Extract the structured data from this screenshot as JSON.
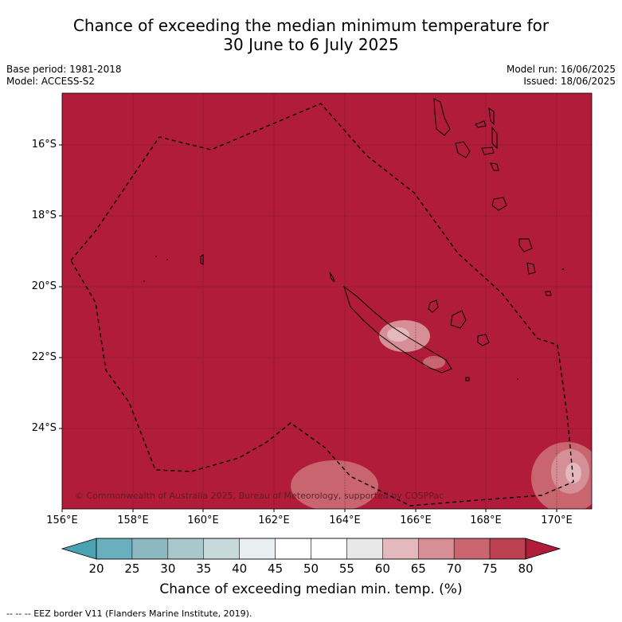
{
  "title": {
    "line1": "Chance of exceeding the median minimum temperature for",
    "line2": "30 June to 6 July 2025"
  },
  "meta": {
    "base_period": "Base period: 1981-2018",
    "model": "Model: ACCESS-S2",
    "model_run": "Model run: 16/06/2025",
    "issued": "Issued: 18/06/2025"
  },
  "map": {
    "lat_labels": [
      "16°S",
      "18°S",
      "20°S",
      "22°S",
      "24°S"
    ],
    "lon_labels": [
      "156°E",
      "158°E",
      "160°E",
      "162°E",
      "164°E",
      "166°E",
      "168°E",
      "170°E"
    ],
    "copyright": "© Commonwealth of Australia 2025, Bureau of Meteorology, supported by COSPPac",
    "background_color": "#b11c3a"
  },
  "colorbar": {
    "ticks": [
      "20",
      "25",
      "30",
      "35",
      "40",
      "45",
      "50",
      "55",
      "60",
      "65",
      "70",
      "75",
      "80"
    ],
    "colors": [
      "#6aafbe",
      "#8cb8c2",
      "#a9c8cc",
      "#c8d9dc",
      "#e9eff0",
      "#ffffff",
      "#ffffff",
      "#e8e8e8",
      "#e3b9bd",
      "#d68f96",
      "#c9656f",
      "#bc4151"
    ],
    "under_color": "#4aa3b3",
    "over_color": "#b11c3a",
    "label": "Chance of exceeding median min. temp. (%)"
  },
  "footer": "--  --  -- EEZ border V11 (Flanders Marine Institute, 2019)."
}
